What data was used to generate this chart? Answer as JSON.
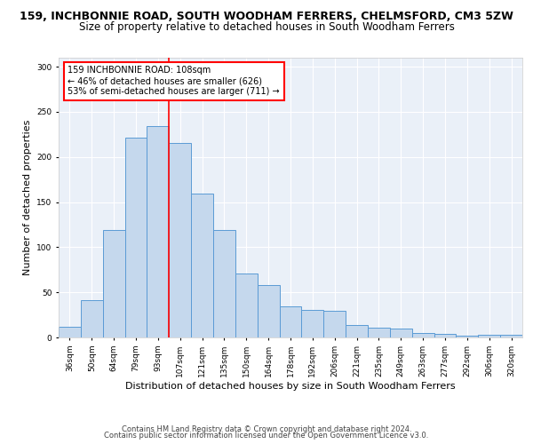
{
  "title_line1": "159, INCHBONNIE ROAD, SOUTH WOODHAM FERRERS, CHELMSFORD, CM3 5ZW",
  "title_line2": "Size of property relative to detached houses in South Woodham Ferrers",
  "xlabel": "Distribution of detached houses by size in South Woodham Ferrers",
  "ylabel": "Number of detached properties",
  "footer_line1": "Contains HM Land Registry data © Crown copyright and database right 2024.",
  "footer_line2": "Contains public sector information licensed under the Open Government Licence v3.0.",
  "categories": [
    "36sqm",
    "50sqm",
    "64sqm",
    "79sqm",
    "93sqm",
    "107sqm",
    "121sqm",
    "135sqm",
    "150sqm",
    "164sqm",
    "178sqm",
    "192sqm",
    "206sqm",
    "221sqm",
    "235sqm",
    "249sqm",
    "263sqm",
    "277sqm",
    "292sqm",
    "306sqm",
    "320sqm"
  ],
  "values": [
    12,
    41,
    119,
    221,
    234,
    216,
    159,
    119,
    71,
    58,
    34,
    31,
    30,
    14,
    11,
    10,
    5,
    4,
    2,
    3,
    3
  ],
  "bar_color": "#c5d8ed",
  "bar_edge_color": "#5b9bd5",
  "vline_index": 5,
  "vline_color": "red",
  "annotation_text": "159 INCHBONNIE ROAD: 108sqm\n← 46% of detached houses are smaller (626)\n53% of semi-detached houses are larger (711) →",
  "annotation_box_color": "white",
  "annotation_box_edge_color": "red",
  "ylim": [
    0,
    310
  ],
  "yticks": [
    0,
    50,
    100,
    150,
    200,
    250,
    300
  ],
  "background_color": "#eaf0f8",
  "grid_color": "white",
  "title_fontsize": 9,
  "subtitle_fontsize": 8.5,
  "xlabel_fontsize": 8,
  "ylabel_fontsize": 8,
  "tick_fontsize": 6.5,
  "annotation_fontsize": 7,
  "footer_fontsize": 6
}
